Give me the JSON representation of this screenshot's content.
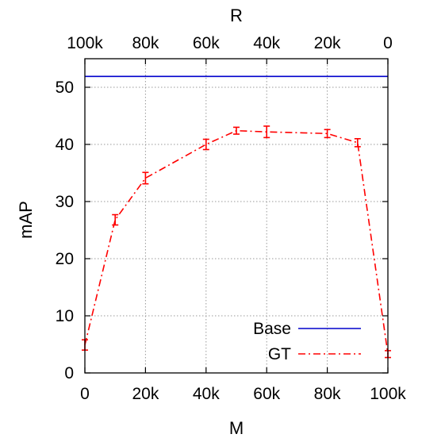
{
  "chart_data": {
    "type": "line",
    "xlabel": "M",
    "ylabel": "mAP",
    "x2label": "R",
    "xlim": [
      0,
      100000
    ],
    "ylim": [
      0,
      55
    ],
    "grid": true,
    "legend_position": "bottom-right",
    "x_ticks": [
      {
        "value": 0,
        "label": "0"
      },
      {
        "value": 20000,
        "label": "20k"
      },
      {
        "value": 40000,
        "label": "40k"
      },
      {
        "value": 60000,
        "label": "60k"
      },
      {
        "value": 80000,
        "label": "80k"
      },
      {
        "value": 100000,
        "label": "100k"
      }
    ],
    "x2_ticks": [
      {
        "value": 0,
        "label": "100k"
      },
      {
        "value": 20000,
        "label": "80k"
      },
      {
        "value": 40000,
        "label": "60k"
      },
      {
        "value": 60000,
        "label": "40k"
      },
      {
        "value": 80000,
        "label": "20k"
      },
      {
        "value": 100000,
        "label": "0"
      }
    ],
    "y_ticks": [
      {
        "value": 0,
        "label": "0"
      },
      {
        "value": 10,
        "label": "10"
      },
      {
        "value": 20,
        "label": "20"
      },
      {
        "value": 30,
        "label": "30"
      },
      {
        "value": 40,
        "label": "40"
      },
      {
        "value": 50,
        "label": "50"
      }
    ],
    "series": [
      {
        "name": "Base",
        "color": "#0000cc",
        "style": "solid",
        "points": [
          {
            "x": 0,
            "y": 51.9
          },
          {
            "x": 100000,
            "y": 51.9
          }
        ]
      },
      {
        "name": "GT",
        "color": "#ff0000",
        "style": "dash-dot",
        "points": [
          {
            "x": 0,
            "y": 4.9,
            "err": 0.9
          },
          {
            "x": 10000,
            "y": 26.8,
            "err": 0.9
          },
          {
            "x": 20000,
            "y": 34.1,
            "err": 1.0
          },
          {
            "x": 40000,
            "y": 40.0,
            "err": 0.9
          },
          {
            "x": 50000,
            "y": 42.4,
            "err": 0.6
          },
          {
            "x": 60000,
            "y": 42.2,
            "err": 1.0
          },
          {
            "x": 80000,
            "y": 41.9,
            "err": 0.7
          },
          {
            "x": 90000,
            "y": 40.3,
            "err": 0.7
          },
          {
            "x": 100000,
            "y": 3.3,
            "err": 0.6
          }
        ]
      }
    ]
  }
}
